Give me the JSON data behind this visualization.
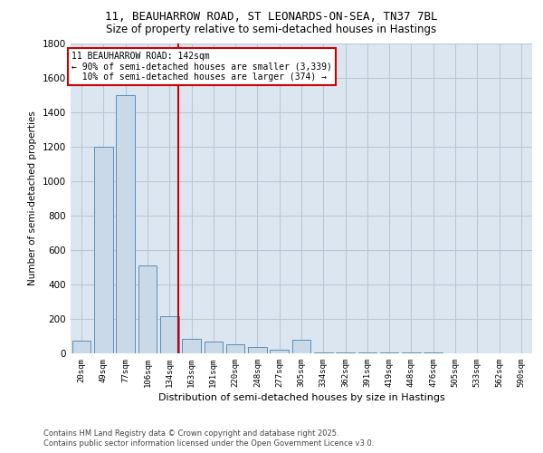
{
  "title_line1": "11, BEAUHARROW ROAD, ST LEONARDS-ON-SEA, TN37 7BL",
  "title_line2": "Size of property relative to semi-detached houses in Hastings",
  "xlabel": "Distribution of semi-detached houses by size in Hastings",
  "ylabel": "Number of semi-detached properties",
  "categories": [
    "20sqm",
    "49sqm",
    "77sqm",
    "106sqm",
    "134sqm",
    "163sqm",
    "191sqm",
    "220sqm",
    "248sqm",
    "277sqm",
    "305sqm",
    "334sqm",
    "362sqm",
    "391sqm",
    "419sqm",
    "448sqm",
    "476sqm",
    "505sqm",
    "533sqm",
    "562sqm",
    "590sqm"
  ],
  "values": [
    75,
    1200,
    1500,
    510,
    215,
    85,
    70,
    50,
    35,
    20,
    80,
    5,
    5,
    5,
    3,
    3,
    3,
    2,
    2,
    1,
    1
  ],
  "bar_color": "#c9d9e8",
  "bar_edge_color": "#5b8db8",
  "grid_color": "#b8c8d8",
  "background_color": "#dce6f0",
  "vline_color": "#cc0000",
  "vline_x": 4.42,
  "annotation_text": "11 BEAUHARROW ROAD: 142sqm\n← 90% of semi-detached houses are smaller (3,339)\n  10% of semi-detached houses are larger (374) →",
  "annotation_box_edgecolor": "#cc0000",
  "footer_line1": "Contains HM Land Registry data © Crown copyright and database right 2025.",
  "footer_line2": "Contains public sector information licensed under the Open Government Licence v3.0.",
  "ylim": [
    0,
    1800
  ],
  "yticks": [
    0,
    200,
    400,
    600,
    800,
    1000,
    1200,
    1400,
    1600,
    1800
  ]
}
